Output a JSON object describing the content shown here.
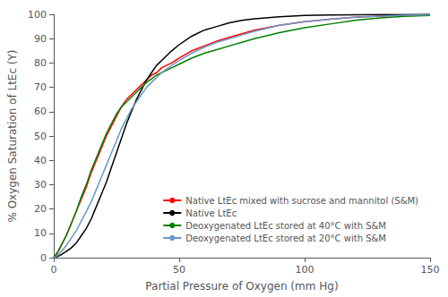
{
  "chart_data": {
    "type": "line",
    "xlabel": "Partial Pressure of Oxygen (mm Hg)",
    "ylabel": "% Oxygen Saturation of LtEc (Y)",
    "x": [
      0,
      1,
      2,
      3,
      5,
      7,
      9,
      11,
      13,
      15,
      17,
      19,
      21,
      23,
      25,
      27,
      29,
      31,
      33,
      35,
      37,
      39,
      41,
      43,
      45,
      47,
      50,
      55,
      60,
      65,
      70,
      75,
      80,
      90,
      100,
      110,
      120,
      130,
      140,
      150
    ],
    "series": [
      {
        "name": "Native LtEc mixed with sucrose and mannitol (S&M)",
        "color": "#ff0000",
        "values": [
          0,
          1,
          3,
          5,
          9,
          14,
          19,
          24,
          29,
          35,
          40,
          45,
          50,
          54,
          58,
          62,
          65,
          67,
          69,
          71,
          73,
          75,
          76,
          78,
          79,
          80,
          82,
          85,
          87,
          89,
          90.5,
          92,
          93.5,
          95.5,
          97,
          98,
          98.8,
          99.3,
          99.6,
          99.8
        ]
      },
      {
        "name": "Native LtEc",
        "color": "#000000",
        "values": [
          0,
          0.3,
          0.7,
          1.2,
          2.5,
          4,
          6,
          9,
          12,
          16,
          21,
          26,
          31,
          37,
          43,
          49,
          55,
          60,
          65,
          69,
          73,
          76,
          79,
          81,
          83,
          85,
          87.5,
          91,
          93.5,
          95,
          96.5,
          97.5,
          98.2,
          99,
          99.5,
          99.7,
          99.8,
          99.9,
          99.95,
          100
        ]
      },
      {
        "name": "Deoxygenated LtEc stored at 40°C with S&M",
        "color": "#008000",
        "values": [
          0,
          1.5,
          3,
          5,
          9,
          14,
          19,
          25,
          30,
          36,
          41,
          46,
          51,
          55,
          59,
          62,
          64,
          66,
          68,
          70,
          72,
          73.5,
          75,
          76,
          77,
          78,
          79.5,
          82,
          84,
          85.5,
          87,
          88.5,
          90,
          92.5,
          94.5,
          96,
          97.5,
          98.5,
          99.2,
          99.5
        ]
      },
      {
        "name": "Deoxygenated LtEc stored at 20°C with S&M",
        "color": "#6699cc",
        "values": [
          0,
          0.5,
          1.5,
          2.5,
          5,
          8,
          11,
          15,
          19,
          23,
          28,
          33,
          38,
          43,
          48,
          53,
          57,
          61,
          64,
          67,
          70,
          72,
          74,
          76,
          77.5,
          79,
          81,
          84,
          86.5,
          88.5,
          90,
          91.5,
          93,
          95.5,
          97,
          98,
          98.8,
          99.3,
          99.6,
          99.8
        ]
      }
    ],
    "xlim": [
      0,
      150
    ],
    "ylim": [
      0,
      100
    ],
    "xticks": [
      0,
      50,
      100,
      150
    ],
    "yticks": [
      0,
      10,
      20,
      30,
      40,
      50,
      60,
      70,
      80,
      90,
      100
    ],
    "grid": false,
    "legend": "lower right"
  }
}
